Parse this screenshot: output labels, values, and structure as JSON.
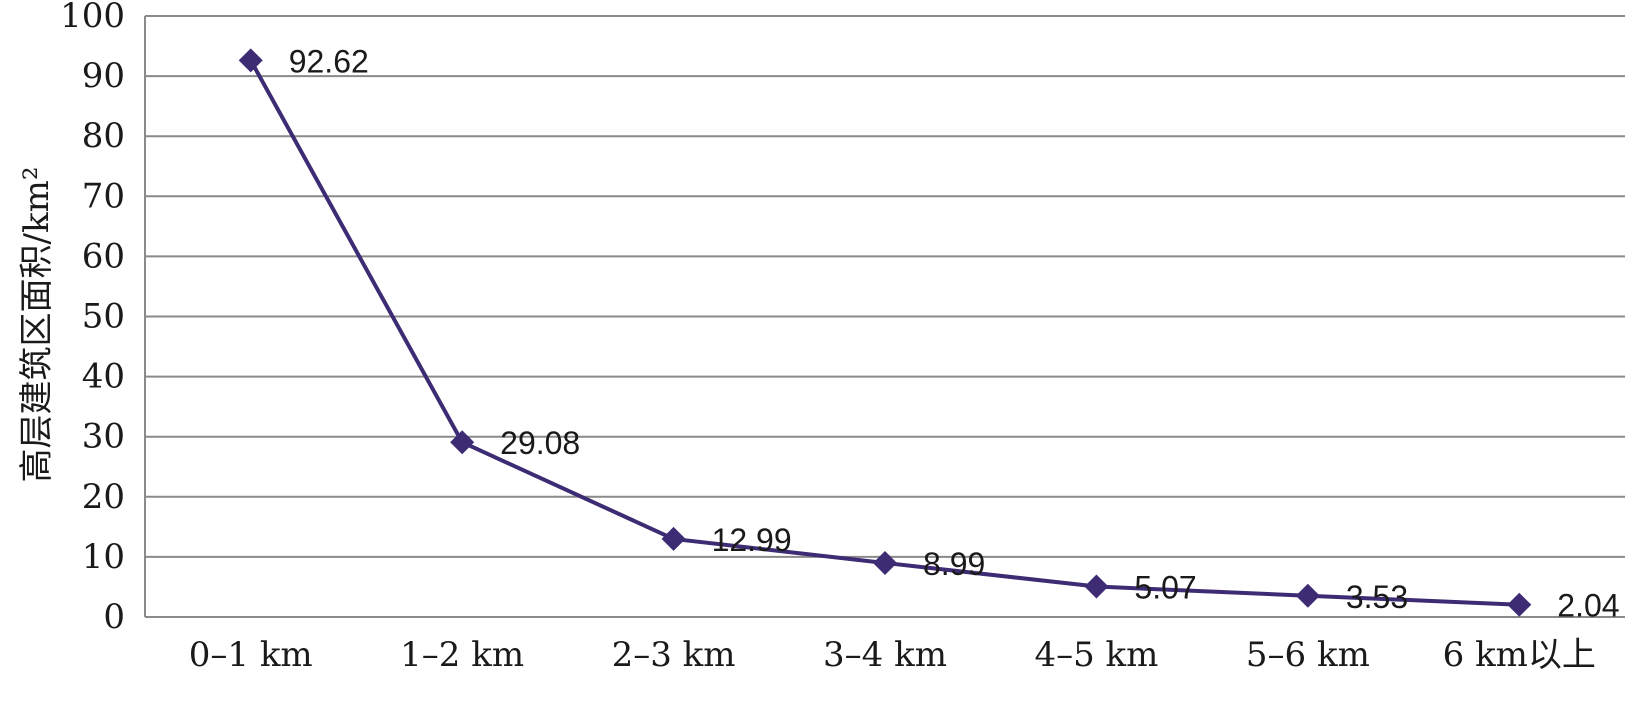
{
  "chart_data": {
    "type": "line",
    "categories": [
      "0–1 km",
      "1–2 km",
      "2–3 km",
      "3–4 km",
      "4–5 km",
      "5–6 km",
      "6 km以上"
    ],
    "series": [
      {
        "values": [
          92.62,
          29.08,
          12.99,
          8.99,
          5.07,
          3.53,
          2.04
        ]
      }
    ],
    "data_labels": [
      "92.62",
      "29.08",
      "12.99",
      "8.99",
      "5.07",
      "3.53",
      "2.04"
    ],
    "ylabel": "高层建筑区面积/km²",
    "xlabel": "",
    "ylim": [
      0,
      100
    ],
    "yticks": [
      0,
      10,
      20,
      30,
      40,
      50,
      60,
      70,
      80,
      90,
      100
    ],
    "ytick_labels": [
      "0",
      "10",
      "20",
      "30",
      "40",
      "50",
      "60",
      "70",
      "80",
      "90",
      "100"
    ],
    "grid": true,
    "legend": "none",
    "colors": {
      "line": "#3d2b73",
      "marker": "#3d2b73",
      "grid": "#8a8a8a"
    }
  }
}
